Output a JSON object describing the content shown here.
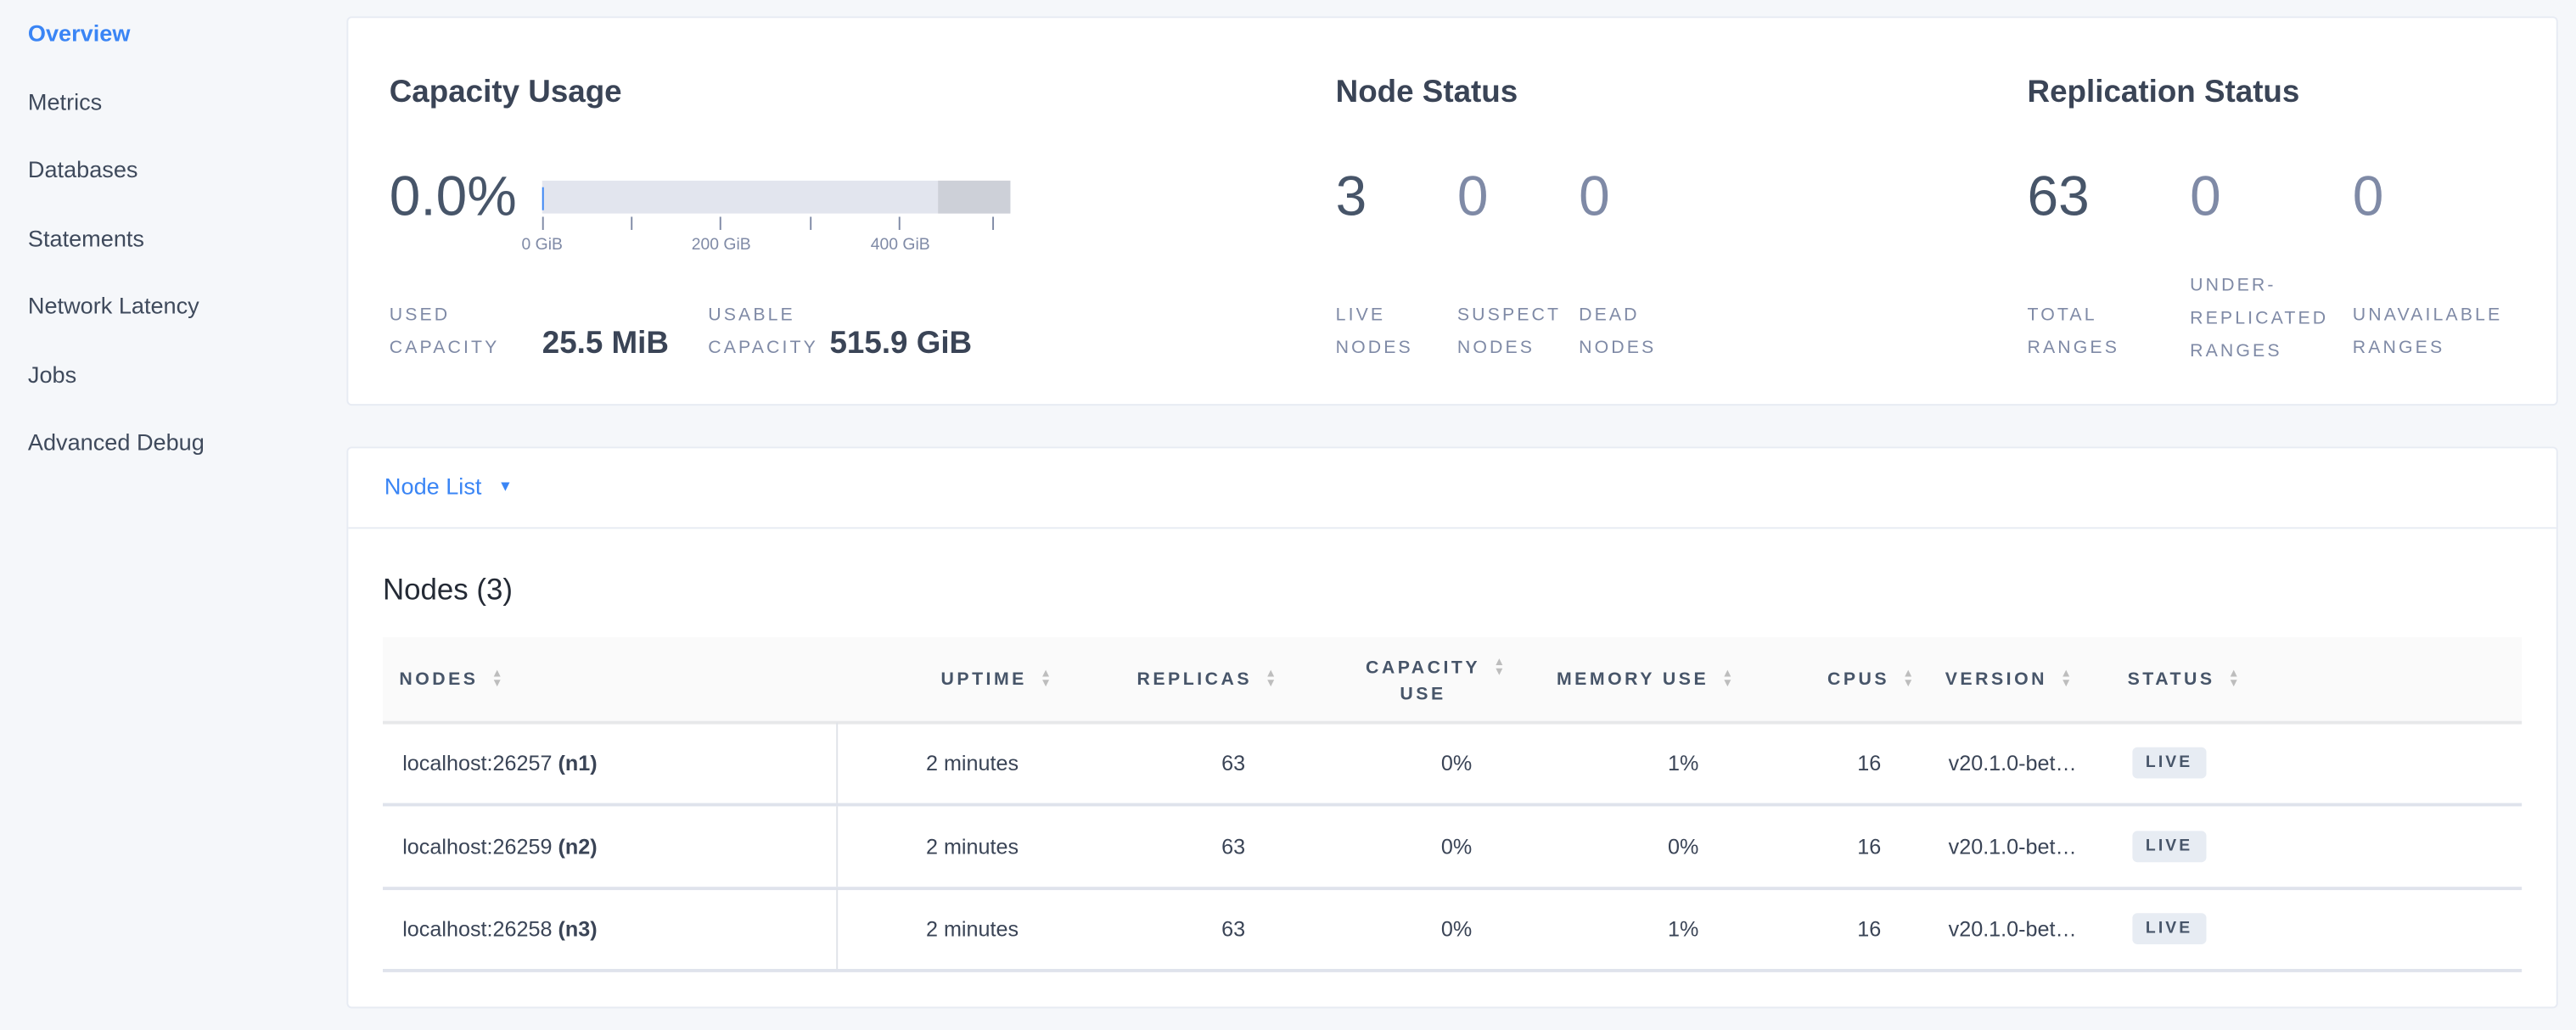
{
  "sidebar": {
    "items": [
      {
        "label": "Overview",
        "active": true
      },
      {
        "label": "Metrics"
      },
      {
        "label": "Databases"
      },
      {
        "label": "Statements"
      },
      {
        "label": "Network Latency"
      },
      {
        "label": "Jobs"
      },
      {
        "label": "Advanced Debug"
      }
    ]
  },
  "capacity": {
    "title": "Capacity Usage",
    "percent": "0.0%",
    "used_fraction": 0.0,
    "bar_ticks": [
      "0 GiB",
      "200 GiB",
      "400 GiB"
    ],
    "used_label_1": "USED",
    "used_label_2": "CAPACITY",
    "used_value": "25.5 MiB",
    "usable_label_1": "USABLE",
    "usable_label_2": "CAPACITY",
    "usable_value": "515.9 GiB"
  },
  "node_status": {
    "title": "Node Status",
    "live": "3",
    "live_l1": "LIVE",
    "live_l2": "NODES",
    "suspect": "0",
    "suspect_l1": "SUSPECT",
    "suspect_l2": "NODES",
    "dead": "0",
    "dead_l1": "DEAD",
    "dead_l2": "NODES"
  },
  "replication": {
    "title": "Replication Status",
    "total": "63",
    "total_l1": "TOTAL",
    "total_l2": "RANGES",
    "under": "0",
    "under_l1": "UNDER-",
    "under_l2": "REPLICATED",
    "under_l3": "RANGES",
    "unavail": "0",
    "unavail_l1": "UNAVAILABLE",
    "unavail_l2": "RANGES"
  },
  "node_list": {
    "dropdown_label": "Node List",
    "heading": "Nodes (3)",
    "columns": {
      "nodes": "NODES",
      "uptime": "UPTIME",
      "replicas": "REPLICAS",
      "capacity_1": "CAPACITY",
      "capacity_2": "USE",
      "memory": "MEMORY USE",
      "cpus": "CPUS",
      "version": "VERSION",
      "status": "STATUS"
    },
    "rows": [
      {
        "host": "localhost:26257",
        "id": "(n1)",
        "uptime": "2 minutes",
        "replicas": "63",
        "capacity": "0%",
        "memory": "1%",
        "cpus": "16",
        "version": "v20.1.0-bet…",
        "status": "LIVE"
      },
      {
        "host": "localhost:26259",
        "id": "(n2)",
        "uptime": "2 minutes",
        "replicas": "63",
        "capacity": "0%",
        "memory": "0%",
        "cpus": "16",
        "version": "v20.1.0-bet…",
        "status": "LIVE"
      },
      {
        "host": "localhost:26258",
        "id": "(n3)",
        "uptime": "2 minutes",
        "replicas": "63",
        "capacity": "0%",
        "memory": "1%",
        "cpus": "16",
        "version": "v20.1.0-bet…",
        "status": "LIVE"
      }
    ]
  },
  "colors": {
    "accent": "#3a85f5",
    "bar_track": "#e2e5ee",
    "bar_reserved": "#cdd0d8",
    "badge_bg": "#e7ecf3"
  }
}
